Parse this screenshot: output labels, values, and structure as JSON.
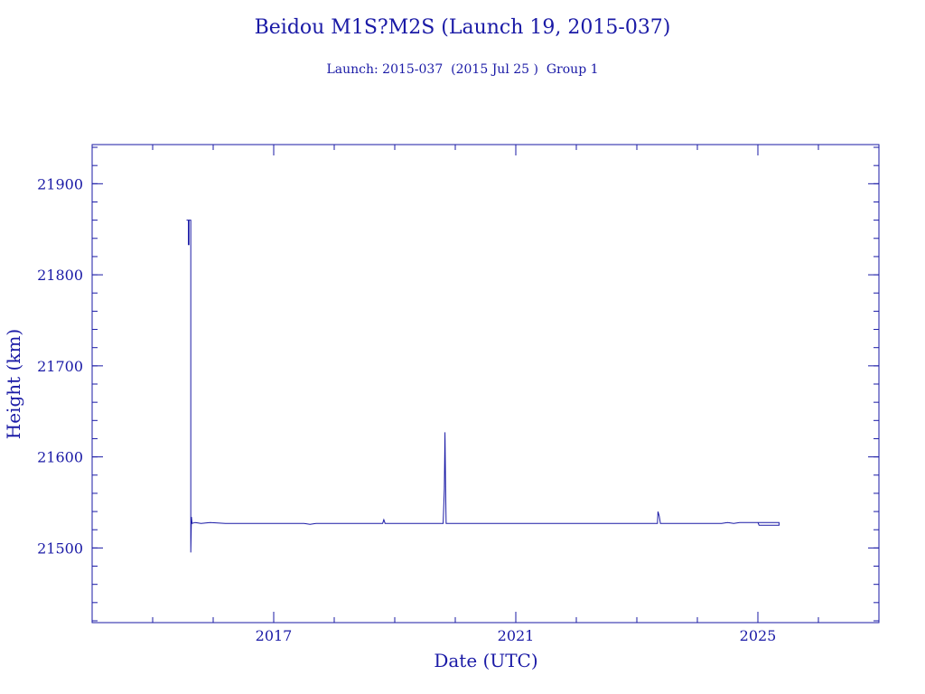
{
  "chart_data": {
    "type": "line",
    "title": "Beidou M1S?M2S (Launch 19, 2015-037)",
    "subtitle": "Launch: 2015-037  (2015 Jul 25 )  Group 1",
    "xlabel": "Date (UTC)",
    "ylabel": "Height (km)",
    "xlim": [
      2014.0,
      2027.0
    ],
    "ylim": [
      21418,
      21943
    ],
    "xticks": [
      {
        "value": 2017,
        "label": "2017"
      },
      {
        "value": 2021,
        "label": "2021"
      },
      {
        "value": 2025,
        "label": "2025"
      }
    ],
    "yticks": [
      {
        "value": 21500,
        "label": "21500"
      },
      {
        "value": 21600,
        "label": "21600"
      },
      {
        "value": 21700,
        "label": "21700"
      },
      {
        "value": 21800,
        "label": "21800"
      },
      {
        "value": 21900,
        "label": "21900"
      }
    ],
    "x_minor_step": 1.0,
    "y_minor_step": 20,
    "grid": false,
    "color": "#1a1aa6",
    "series": [
      {
        "points": [
          [
            2015.56,
            21860
          ],
          [
            2015.59,
            21860
          ],
          [
            2015.59,
            21833
          ],
          [
            2015.6,
            21833
          ],
          [
            2015.6,
            21860
          ],
          [
            2015.63,
            21860
          ],
          [
            2015.63,
            21833
          ],
          [
            2015.63,
            21495
          ],
          [
            2015.64,
            21534
          ],
          [
            2015.65,
            21527
          ],
          [
            2015.7,
            21528
          ],
          [
            2015.8,
            21527
          ],
          [
            2015.95,
            21528
          ],
          [
            2016.2,
            21527
          ],
          [
            2016.5,
            21527
          ],
          [
            2017.0,
            21527
          ],
          [
            2017.5,
            21527
          ],
          [
            2017.6,
            21526
          ],
          [
            2017.7,
            21527
          ],
          [
            2018.5,
            21527
          ],
          [
            2018.8,
            21527
          ],
          [
            2018.82,
            21531
          ],
          [
            2018.84,
            21527
          ],
          [
            2019.8,
            21527
          ],
          [
            2019.82,
            21565
          ],
          [
            2019.83,
            21627
          ],
          [
            2019.84,
            21565
          ],
          [
            2019.85,
            21527
          ],
          [
            2020.5,
            21527
          ],
          [
            2021.0,
            21527
          ],
          [
            2022.0,
            21527
          ],
          [
            2023.0,
            21527
          ],
          [
            2023.34,
            21527
          ],
          [
            2023.35,
            21540
          ],
          [
            2023.37,
            21535
          ],
          [
            2023.39,
            21527
          ],
          [
            2024.0,
            21527
          ],
          [
            2024.4,
            21527
          ],
          [
            2024.5,
            21528
          ],
          [
            2024.6,
            21527
          ],
          [
            2024.7,
            21528
          ],
          [
            2025.0,
            21528
          ],
          [
            2025.02,
            21525
          ],
          [
            2025.1,
            21525
          ],
          [
            2025.35,
            21525
          ],
          [
            2025.35,
            21528
          ],
          [
            2025.1,
            21528
          ],
          [
            2025.0,
            21528
          ]
        ]
      }
    ]
  }
}
